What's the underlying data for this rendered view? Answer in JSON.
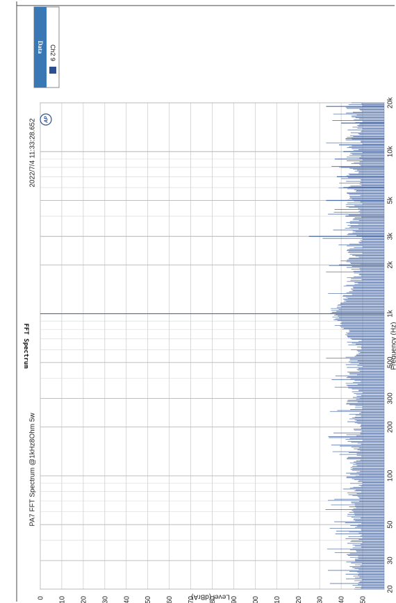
{
  "chart_data": {
    "type": "line",
    "title": "FFT Spectrum",
    "subtitle": "PA7 FFT Spectrum @1kHz8Ohm 5w",
    "timestamp": "2022/7/4 11:33:28.652",
    "xlabel": "Frequency (Hz)",
    "ylabel": "Level (dBrA)",
    "x_scale": "log",
    "xlim": [
      20,
      20000
    ],
    "ylim": [
      -160,
      0
    ],
    "x_ticks": [
      "20",
      "30",
      "50",
      "100",
      "200",
      "300",
      "500",
      "1k",
      "2k",
      "3k",
      "5k",
      "10k",
      "20k"
    ],
    "y_ticks": [
      "0",
      "-10",
      "-20",
      "-30",
      "-40",
      "-50",
      "-60",
      "-70",
      "-80",
      "-90",
      "-100",
      "-110",
      "-120",
      "-130",
      "-140",
      "-150"
    ],
    "grid": true,
    "legend_position": "top-right",
    "legend": {
      "title": "Data",
      "entries": [
        {
          "label": "Ch2 9",
          "color": "#2b4f8f"
        }
      ]
    },
    "series": [
      {
        "name": "Ch2 9",
        "color": "#4a6aa5",
        "noise_floor": -150,
        "peaks": [
          {
            "x": 1000,
            "y": 0
          },
          {
            "x": 2000,
            "y": -139
          },
          {
            "x": 3000,
            "y": -125
          },
          {
            "x": 4000,
            "y": -142
          },
          {
            "x": 5000,
            "y": -133
          },
          {
            "x": 6000,
            "y": -141
          },
          {
            "x": 7000,
            "y": -138
          },
          {
            "x": 8000,
            "y": -140
          },
          {
            "x": 9000,
            "y": -137
          },
          {
            "x": 10000,
            "y": -141
          },
          {
            "x": 11000,
            "y": -139
          },
          {
            "x": 12000,
            "y": -142
          },
          {
            "x": 15000,
            "y": -140
          },
          {
            "x": 19000,
            "y": -133
          }
        ]
      }
    ]
  }
}
